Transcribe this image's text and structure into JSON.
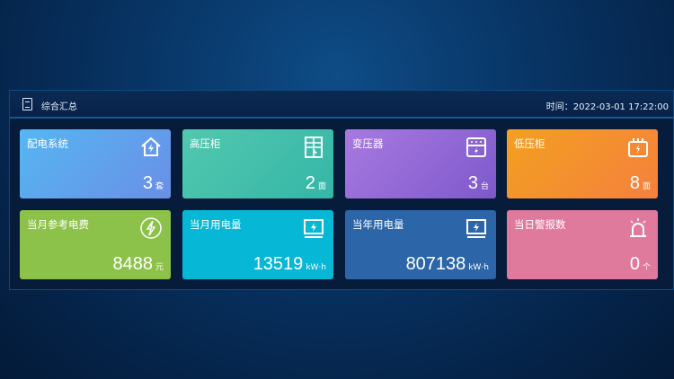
{
  "header": {
    "title": "综合汇总",
    "time_label": "时间：",
    "time": "2022-03-01 17:22:00"
  },
  "cards": [
    {
      "label": "配电系统",
      "value": "3",
      "unit": "套",
      "icon": "house-lightning-icon",
      "color": "#5aaaf0"
    },
    {
      "label": "高压柜",
      "value": "2",
      "unit": "面",
      "icon": "cabinet-icon",
      "color": "#47c4ab"
    },
    {
      "label": "变压器",
      "value": "3",
      "unit": "台",
      "icon": "transformer-icon",
      "color": "#9a6ad8"
    },
    {
      "label": "低压柜",
      "value": "8",
      "unit": "面",
      "icon": "battery-icon",
      "color": "#f49330"
    },
    {
      "label": "当月参考电费",
      "value": "8488",
      "unit": "元",
      "icon": "lightning-circle-icon",
      "color": "#8dc24a"
    },
    {
      "label": "当月用电量",
      "value": "13519",
      "unit": "kW·h",
      "icon": "monitor-lightning-icon",
      "color": "#06b8d6"
    },
    {
      "label": "当年用电量",
      "value": "807138",
      "unit": "kW·h",
      "icon": "monitor-lightning-icon",
      "color": "#2c66a8"
    },
    {
      "label": "当日警报数",
      "value": "0",
      "unit": "个",
      "icon": "alarm-icon",
      "color": "#e07a9c"
    }
  ]
}
